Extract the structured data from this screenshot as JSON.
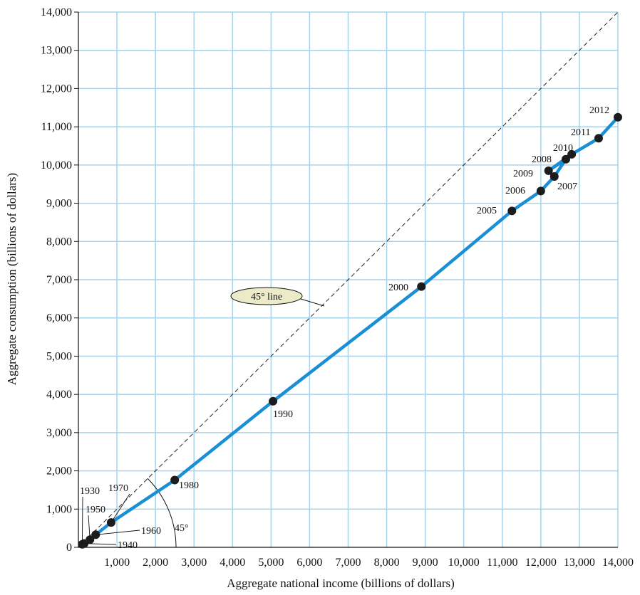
{
  "chart_data": {
    "type": "line",
    "xlabel": "Aggregate national income (billions of dollars)",
    "ylabel": "Aggregate consumption (billions of dollars)",
    "xlim": [
      0,
      14000
    ],
    "ylim": [
      0,
      14000
    ],
    "x_ticks": [
      "1,000",
      "2,000",
      "3,000",
      "4,000",
      "5,000",
      "6,000",
      "7,000",
      "8,000",
      "9,000",
      "10,000",
      "11,000",
      "12,000",
      "13,000",
      "14,000"
    ],
    "y_ticks": [
      "0",
      "1,000",
      "2,000",
      "3,000",
      "4,000",
      "5,000",
      "6,000",
      "7,000",
      "8,000",
      "9,000",
      "10,000",
      "11,000",
      "12,000",
      "13,000",
      "14,000"
    ],
    "grid": true,
    "series": [
      {
        "color": "#1a8fd6",
        "points": [
          {
            "label": "1930",
            "x": 100,
            "y": 80
          },
          {
            "label": "1940",
            "x": 150,
            "y": 100
          },
          {
            "label": "1950",
            "x": 300,
            "y": 200
          },
          {
            "label": "1960",
            "x": 450,
            "y": 330
          },
          {
            "label": "1970",
            "x": 850,
            "y": 650
          },
          {
            "label": "1980",
            "x": 2500,
            "y": 1760
          },
          {
            "label": "1990",
            "x": 5050,
            "y": 3820
          },
          {
            "label": "2000",
            "x": 8900,
            "y": 6820
          },
          {
            "label": "2005",
            "x": 11250,
            "y": 8800
          },
          {
            "label": "2006",
            "x": 12000,
            "y": 9320
          },
          {
            "label": "2007",
            "x": 12350,
            "y": 9700
          },
          {
            "label": "2008",
            "x": 12650,
            "y": 10150
          },
          {
            "label": "2009",
            "x": 12200,
            "y": 9850
          },
          {
            "label": "2010",
            "x": 12800,
            "y": 10280
          },
          {
            "label": "2011",
            "x": 13500,
            "y": 10700
          },
          {
            "label": "2012",
            "x": 14000,
            "y": 11250
          }
        ]
      }
    ],
    "reference_line": {
      "label": "45° line",
      "slope": 1,
      "color": "#222222"
    },
    "angle_label": "45°"
  }
}
